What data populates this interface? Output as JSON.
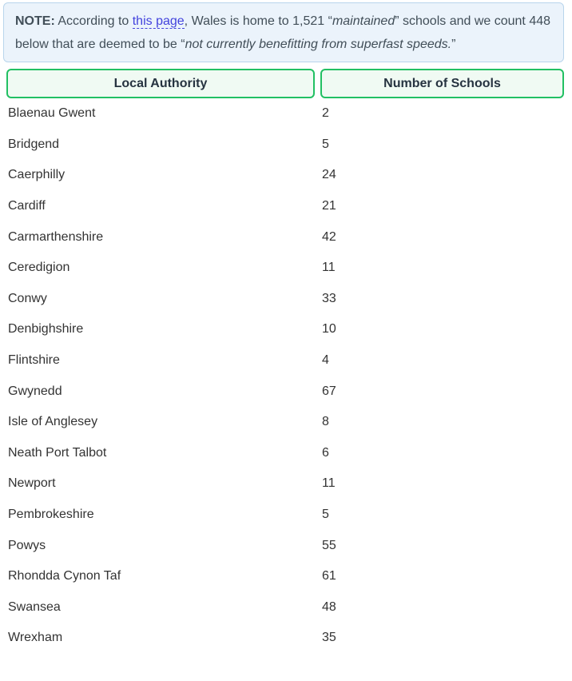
{
  "note": {
    "segments": [
      {
        "style": "bold",
        "text": "NOTE:"
      },
      {
        "style": "text",
        "text": " According to "
      },
      {
        "style": "link",
        "text": "this page"
      },
      {
        "style": "text",
        "text": ", Wales is home to 1,521 “"
      },
      {
        "style": "italic",
        "text": "maintained"
      },
      {
        "style": "text",
        "text": "” schools and we count 448 below that are deemed to be “"
      },
      {
        "style": "italic",
        "text": "not currently benefitting from superfast speeds."
      },
      {
        "style": "text",
        "text": "”"
      }
    ]
  },
  "table": {
    "columns": [
      "Local Authority",
      "Number of Schools"
    ],
    "rows": [
      {
        "authority": "Blaenau Gwent",
        "schools": "2"
      },
      {
        "authority": "Bridgend",
        "schools": "5"
      },
      {
        "authority": "Caerphilly",
        "schools": "24"
      },
      {
        "authority": "Cardiff",
        "schools": "21"
      },
      {
        "authority": "Carmarthenshire",
        "schools": "42"
      },
      {
        "authority": "Ceredigion",
        "schools": "11"
      },
      {
        "authority": "Conwy",
        "schools": "33"
      },
      {
        "authority": "Denbighshire",
        "schools": "10"
      },
      {
        "authority": "Flintshire",
        "schools": "4"
      },
      {
        "authority": "Gwynedd",
        "schools": "67"
      },
      {
        "authority": "Isle of Anglesey",
        "schools": "8"
      },
      {
        "authority": "Neath Port Talbot",
        "schools": "6"
      },
      {
        "authority": "Newport",
        "schools": "11"
      },
      {
        "authority": "Pembrokeshire",
        "schools": "5"
      },
      {
        "authority": "Powys",
        "schools": "55"
      },
      {
        "authority": "Rhondda Cynon Taf",
        "schools": "61"
      },
      {
        "authority": "Swansea",
        "schools": "48"
      },
      {
        "authority": "Wrexham",
        "schools": "35"
      }
    ]
  },
  "colors": {
    "note_bg": "#ebf3fb",
    "note_border": "#b9d5ec",
    "note_text": "#414e58",
    "link": "#4343dd",
    "header_border": "#22c063",
    "header_bg": "#f0faf3",
    "header_text": "#263340"
  }
}
